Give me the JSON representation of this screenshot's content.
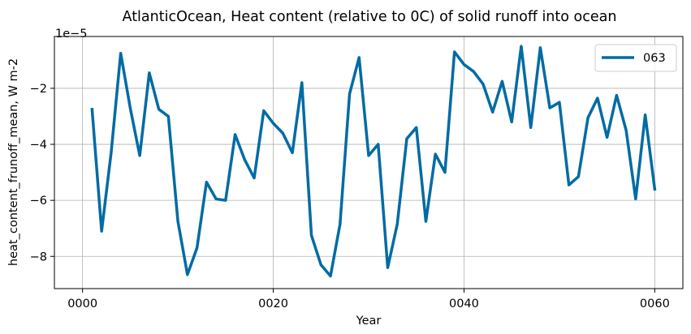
{
  "chart_data": {
    "type": "line",
    "title": "AtlanticOcean, Heat content (relative to 0C) of solid runoff into ocean",
    "xlabel": "Year",
    "ylabel": "heat_content_frunoff_mean, W m-2",
    "offset_text": "1e−5",
    "x_ticks": [
      {
        "value": 0,
        "label": "0000"
      },
      {
        "value": 20,
        "label": "0020"
      },
      {
        "value": 40,
        "label": "0040"
      },
      {
        "value": 60,
        "label": "0060"
      }
    ],
    "y_ticks": [
      {
        "value": -8,
        "label": "−8"
      },
      {
        "value": -6,
        "label": "−6"
      },
      {
        "value": -4,
        "label": "−4"
      },
      {
        "value": -2,
        "label": "−2"
      }
    ],
    "xlim": [
      -2.95,
      62.95
    ],
    "ylim": [
      -9.15,
      -0.15
    ],
    "grid": true,
    "legend_position": "top-right",
    "series": [
      {
        "name": "063",
        "color": "#006ba4",
        "x": [
          1,
          2,
          3,
          4,
          5,
          6,
          7,
          8,
          9,
          10,
          11,
          12,
          13,
          14,
          15,
          16,
          17,
          18,
          19,
          20,
          21,
          22,
          23,
          24,
          25,
          26,
          27,
          28,
          29,
          30,
          31,
          32,
          33,
          34,
          35,
          36,
          37,
          38,
          39,
          40,
          41,
          42,
          43,
          44,
          45,
          46,
          47,
          48,
          49,
          50,
          51,
          52,
          53,
          54,
          55,
          56,
          57,
          58,
          59,
          60
        ],
        "values": [
          -2.75,
          -7.1,
          -4.3,
          -0.75,
          -2.7,
          -4.4,
          -1.45,
          -2.75,
          -3.0,
          -6.75,
          -8.65,
          -7.7,
          -5.35,
          -5.95,
          -6.0,
          -3.65,
          -4.55,
          -5.2,
          -2.8,
          -3.25,
          -3.6,
          -4.3,
          -1.8,
          -7.25,
          -8.3,
          -8.7,
          -6.85,
          -2.2,
          -0.9,
          -4.4,
          -4.0,
          -8.4,
          -6.85,
          -3.8,
          -3.4,
          -6.75,
          -4.35,
          -5.0,
          -0.7,
          -1.15,
          -1.4,
          -1.85,
          -2.85,
          -1.75,
          -3.2,
          -0.5,
          -3.4,
          -0.55,
          -2.7,
          -2.5,
          -5.45,
          -5.15,
          -3.05,
          -2.35,
          -3.75,
          -2.25,
          -3.5,
          -5.95,
          -2.95,
          -5.6
        ]
      }
    ]
  }
}
